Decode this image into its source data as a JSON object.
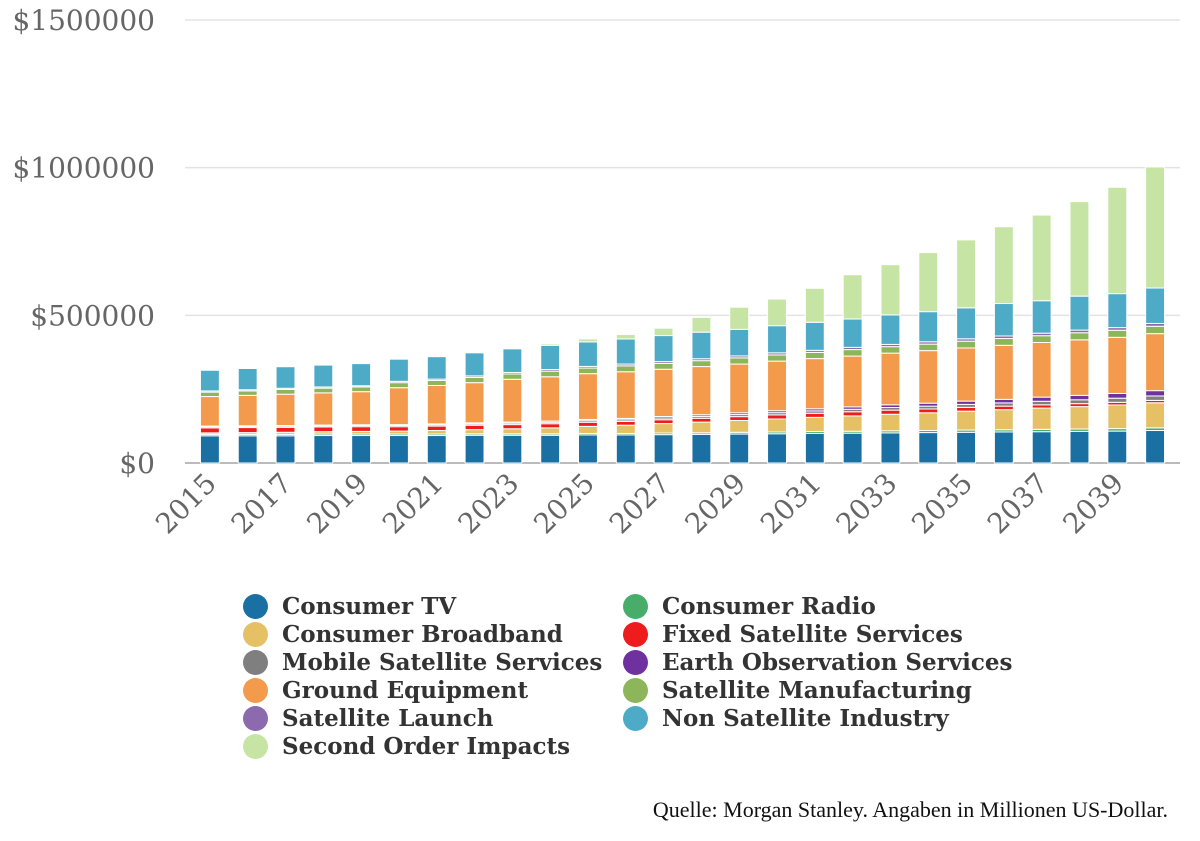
{
  "chart_data": {
    "type": "bar",
    "stacked": true,
    "title": "",
    "xlabel": "",
    "ylabel": "",
    "ylim": [
      0,
      1500000
    ],
    "yticks": [
      0,
      500000,
      1000000,
      1500000
    ],
    "ytick_labels": [
      "$0",
      "$500000",
      "$1000000",
      "$1500000"
    ],
    "grid": true,
    "legend_position": "bottom",
    "categories": [
      "2015",
      "2016",
      "2017",
      "2018",
      "2019",
      "2020",
      "2021",
      "2022",
      "2023",
      "2024",
      "2025",
      "2026",
      "2027",
      "2028",
      "2029",
      "2030",
      "2031",
      "2032",
      "2033",
      "2034",
      "2035",
      "2036",
      "2037",
      "2038",
      "2039",
      "2040"
    ],
    "xtick_labels": [
      "2015",
      "2017",
      "2019",
      "2021",
      "2023",
      "2025",
      "2027",
      "2029",
      "2031",
      "2033",
      "2035",
      "2037",
      "2039"
    ],
    "series": [
      {
        "name": "Consumer TV",
        "color": "#1a6fa3",
        "values": [
          92000,
          92000,
          92000,
          93000,
          93000,
          93000,
          93000,
          94000,
          94000,
          94000,
          95000,
          95000,
          96000,
          97000,
          98000,
          99000,
          100000,
          101000,
          102000,
          103000,
          104000,
          105000,
          106000,
          107000,
          108000,
          110000
        ]
      },
      {
        "name": "Consumer Radio",
        "color": "#48ad6a",
        "values": [
          5000,
          5000,
          5000,
          5000,
          5000,
          5000,
          5000,
          5000,
          5000,
          5000,
          5000,
          5000,
          5500,
          5500,
          6000,
          6000,
          6500,
          6500,
          7000,
          7000,
          7500,
          7500,
          8000,
          8000,
          8500,
          9000
        ]
      },
      {
        "name": "Consumer Broadband",
        "color": "#e6c064",
        "values": [
          5000,
          6000,
          7000,
          8000,
          9000,
          10000,
          12000,
          14000,
          17000,
          20000,
          24000,
          28000,
          32000,
          36000,
          40000,
          44000,
          48000,
          52000,
          56000,
          60000,
          64000,
          68000,
          72000,
          76000,
          80000,
          85000
        ]
      },
      {
        "name": "Fixed Satellite Services",
        "color": "#ee1c1c",
        "values": [
          17000,
          17000,
          17000,
          16000,
          16000,
          15000,
          15000,
          15000,
          14000,
          14000,
          14000,
          13000,
          13000,
          13000,
          13000,
          14000,
          14000,
          14000,
          14000,
          13000,
          13000,
          12000,
          11000,
          10000,
          9000,
          8000
        ]
      },
      {
        "name": "Mobile Satellite Services",
        "color": "#7f7f7f",
        "values": [
          4000,
          4000,
          4000,
          4000,
          4000,
          4000,
          4500,
          4500,
          5000,
          5000,
          5500,
          5500,
          6000,
          6500,
          7000,
          7500,
          8000,
          8500,
          9000,
          9500,
          10000,
          11000,
          12000,
          13000,
          14000,
          15000
        ]
      },
      {
        "name": "Earth Observation Services",
        "color": "#6f30a0",
        "values": [
          2000,
          2000,
          2000,
          2500,
          2500,
          3000,
          3000,
          3500,
          3500,
          4000,
          4000,
          4500,
          5000,
          5500,
          6000,
          6500,
          7000,
          8000,
          9000,
          10000,
          11000,
          12000,
          14000,
          15000,
          16000,
          18000
        ]
      },
      {
        "name": "Ground Equipment",
        "color": "#f39a4c",
        "values": [
          100000,
          103000,
          106000,
          109000,
          112000,
          125000,
          130000,
          136000,
          145000,
          150000,
          155000,
          158000,
          160000,
          163000,
          165000,
          168000,
          170000,
          172000,
          175000,
          178000,
          180000,
          183000,
          185000,
          188000,
          190000,
          193000
        ]
      },
      {
        "name": "Satellite Manufacturing",
        "color": "#8db65a",
        "values": [
          15000,
          15000,
          16000,
          16000,
          16000,
          17000,
          17000,
          18000,
          18000,
          19000,
          19000,
          20000,
          20000,
          20000,
          21000,
          21000,
          21000,
          22000,
          22000,
          22000,
          23000,
          23000,
          23000,
          24000,
          24000,
          25000
        ]
      },
      {
        "name": "Satellite Launch",
        "color": "#8b6bad",
        "values": [
          4000,
          4000,
          4000,
          4000,
          4000,
          4500,
          4500,
          5000,
          5000,
          5500,
          5500,
          6000,
          6000,
          6500,
          6500,
          7000,
          7000,
          7500,
          7500,
          8000,
          8000,
          8500,
          8500,
          9000,
          9000,
          9500
        ]
      },
      {
        "name": "Non Satellite Industry",
        "color": "#4eabc8",
        "values": [
          70000,
          72000,
          73000,
          74000,
          75000,
          75000,
          76000,
          78000,
          80000,
          82000,
          83000,
          85000,
          88000,
          90000,
          90000,
          92000,
          95000,
          96000,
          100000,
          102000,
          105000,
          110000,
          110000,
          115000,
          115000,
          120000
        ]
      },
      {
        "name": "Second Order Impacts",
        "color": "#c6e5a5",
        "values": [
          0,
          0,
          0,
          0,
          0,
          0,
          0,
          0,
          0,
          5000,
          10000,
          15000,
          25000,
          50000,
          75000,
          90000,
          115000,
          150000,
          170000,
          200000,
          230000,
          260000,
          290000,
          320000,
          360000,
          410000
        ]
      }
    ]
  },
  "legend": {
    "items": [
      {
        "label": "Consumer TV",
        "color": "#1a6fa3"
      },
      {
        "label": "Consumer Radio",
        "color": "#48ad6a"
      },
      {
        "label": "Consumer Broadband",
        "color": "#e6c064"
      },
      {
        "label": "Fixed Satellite Services",
        "color": "#ee1c1c"
      },
      {
        "label": "Mobile Satellite Services",
        "color": "#7f7f7f"
      },
      {
        "label": "Earth Observation Services",
        "color": "#6f30a0"
      },
      {
        "label": "Ground Equipment",
        "color": "#f39a4c"
      },
      {
        "label": "Satellite Manufacturing",
        "color": "#8db65a"
      },
      {
        "label": "Satellite Launch",
        "color": "#8b6bad"
      },
      {
        "label": "Non Satellite Industry",
        "color": "#4eabc8"
      },
      {
        "label": "Second Order Impacts",
        "color": "#c6e5a5"
      }
    ]
  },
  "source_note": "Quelle: Morgan Stanley. Angaben in Millionen US-Dollar."
}
